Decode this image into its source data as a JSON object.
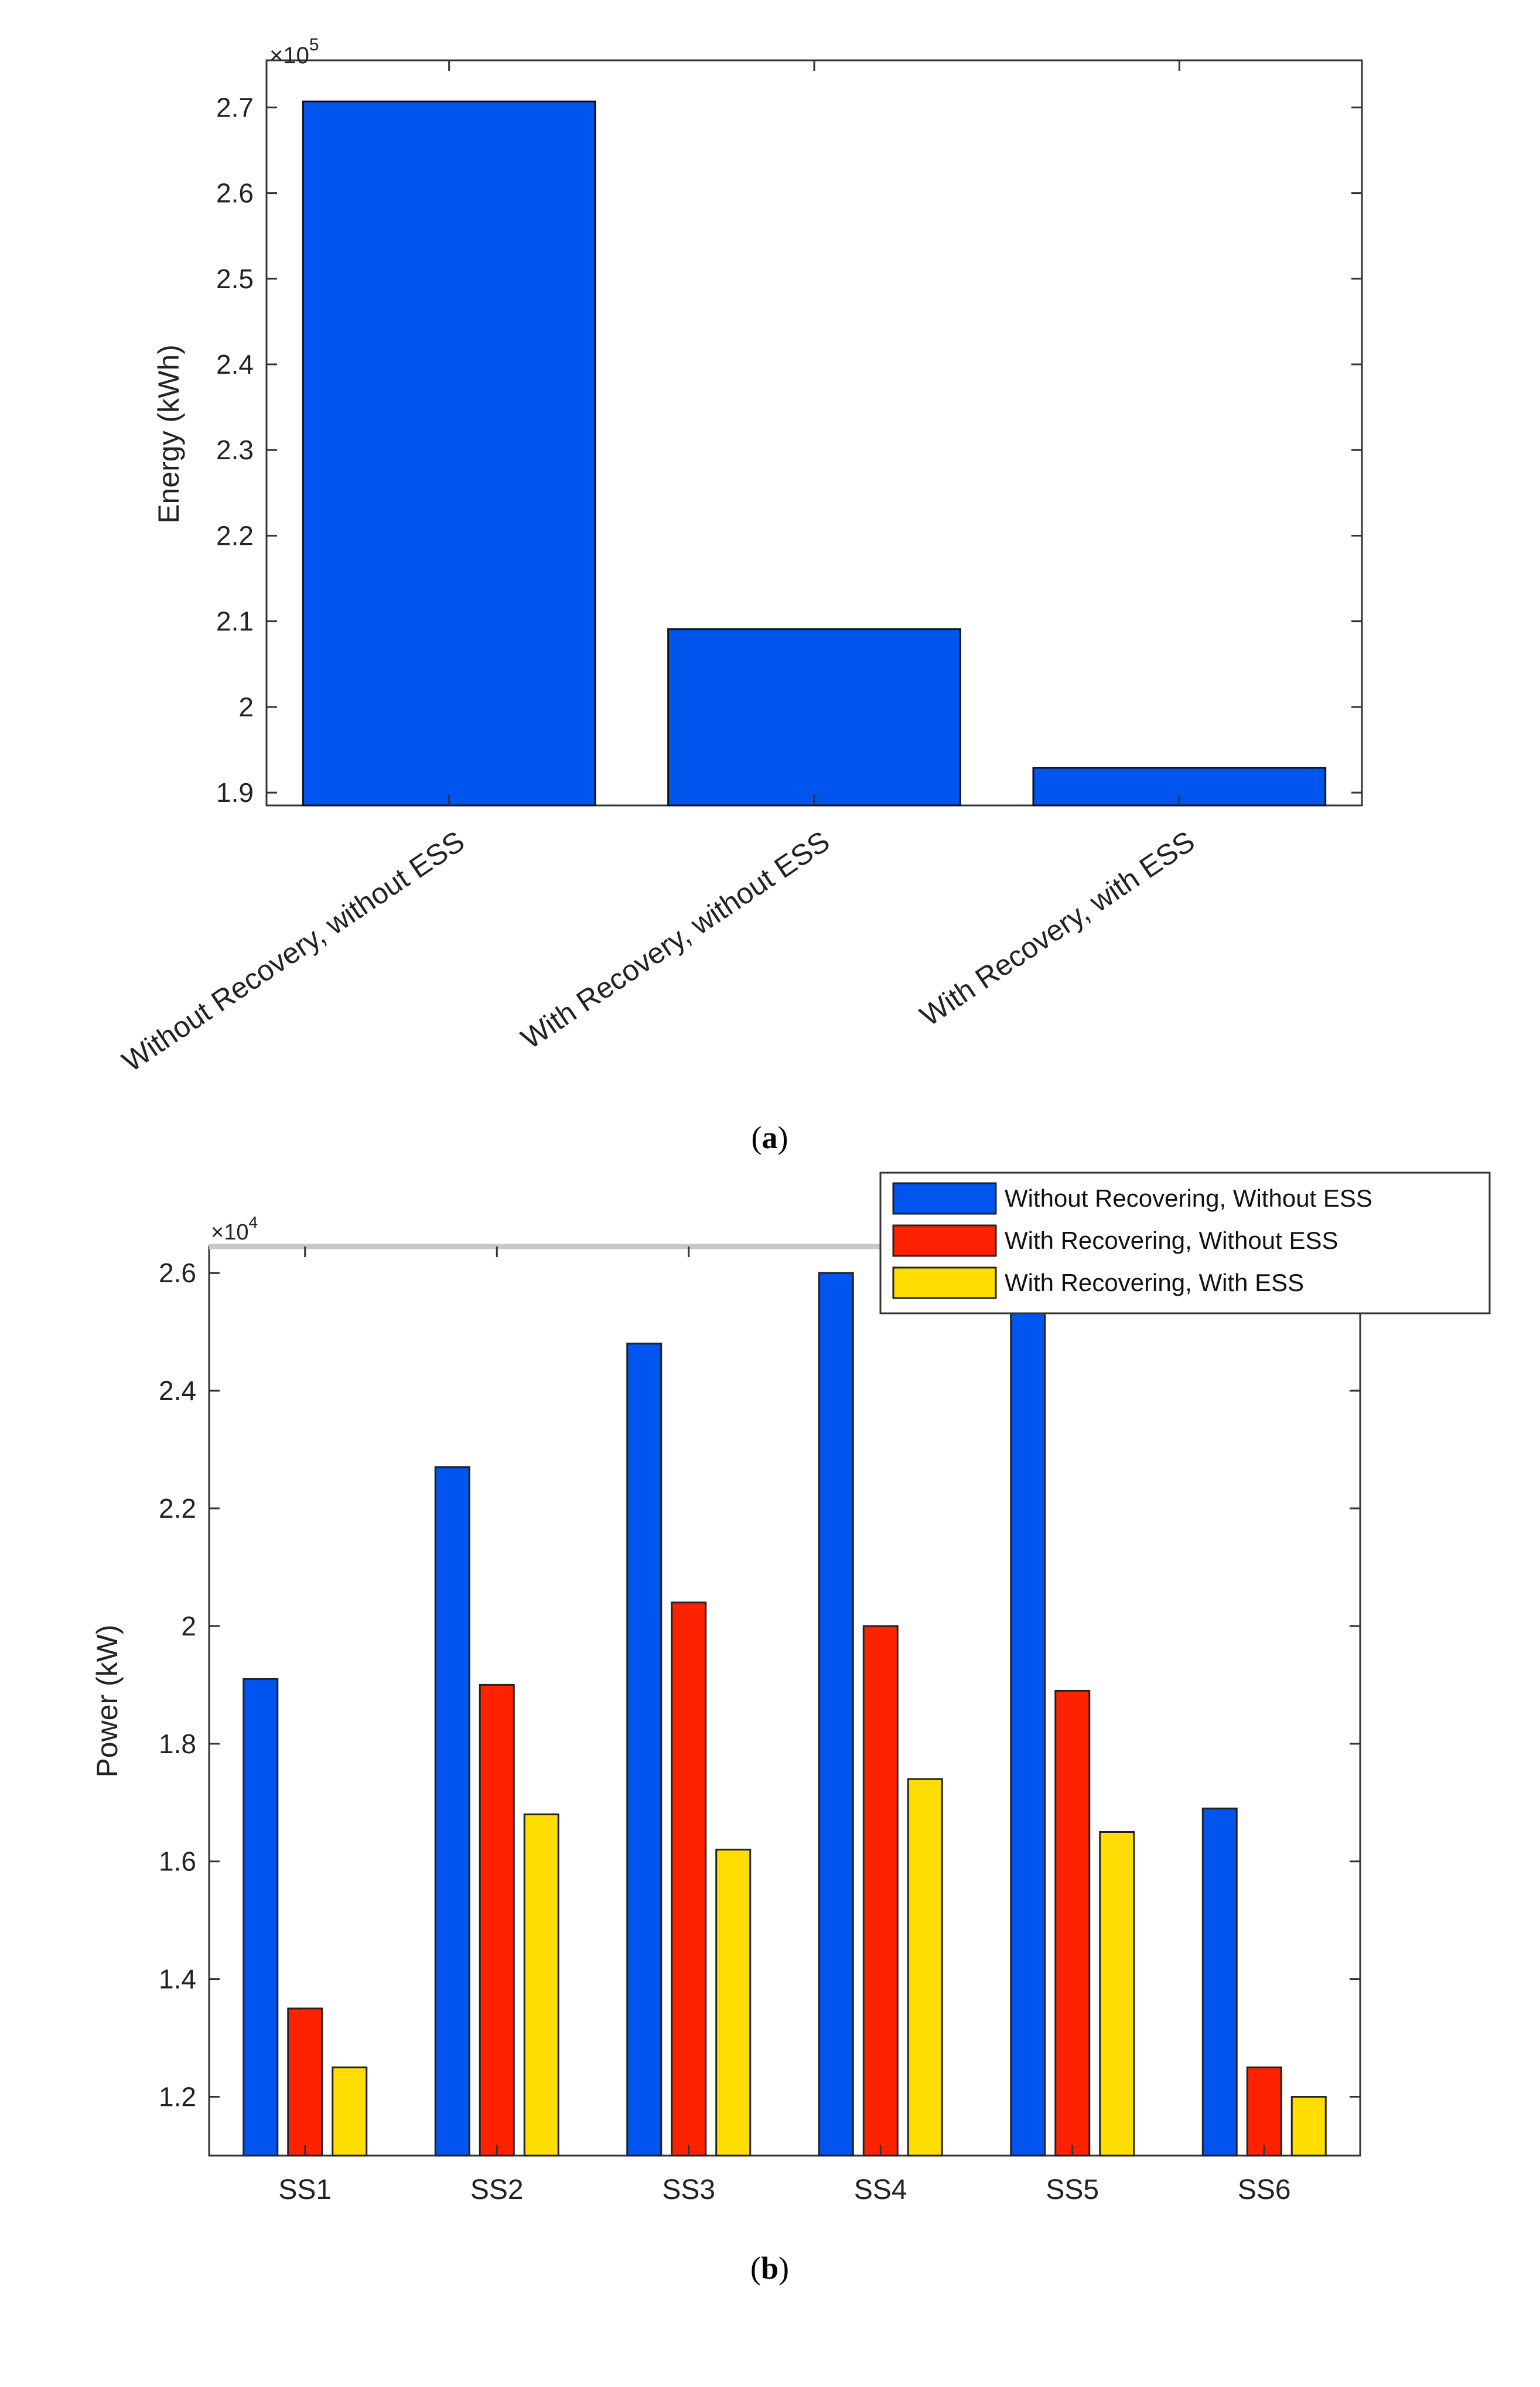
{
  "chart_data": [
    {
      "type": "bar",
      "caption_letter": "a",
      "ylabel": "Energy (kWh)",
      "y_exponent_label": "×10",
      "y_exponent": "5",
      "ylim": [
        1.885,
        2.755
      ],
      "yticks": [
        1.9,
        2.0,
        2.1,
        2.2,
        2.3,
        2.4,
        2.5,
        2.6,
        2.7
      ],
      "ytick_labels": [
        "1.9",
        "2",
        "2.1",
        "2.2",
        "2.3",
        "2.4",
        "2.5",
        "2.6",
        "2.7"
      ],
      "categories": [
        "Without Recovery, without ESS",
        "With Recovery, without ESS",
        "With Recovery, with ESS"
      ],
      "values": [
        2.707,
        2.091,
        1.929
      ],
      "bar_color": "#0055ee",
      "grid": false
    },
    {
      "type": "bar",
      "caption_letter": "b",
      "ylabel": "Power (kW)",
      "y_exponent_label": "×10",
      "y_exponent": "4",
      "ylim": [
        1.1,
        2.645
      ],
      "yticks": [
        1.2,
        1.4,
        1.6,
        1.8,
        2.0,
        2.2,
        2.4,
        2.6
      ],
      "ytick_labels": [
        "1.2",
        "1.4",
        "1.6",
        "1.8",
        "2",
        "2.2",
        "2.4",
        "2.6"
      ],
      "categories": [
        "SS1",
        "SS2",
        "SS3",
        "SS4",
        "SS5",
        "SS6"
      ],
      "legend_position": "top-right",
      "grid": false,
      "series": [
        {
          "name": "Without Recovering, Without ESS",
          "color": "#0055ee",
          "values": [
            1.91,
            2.27,
            2.48,
            2.6,
            2.58,
            1.69
          ]
        },
        {
          "name": "With Recovering, Without ESS",
          "color": "#ff2200",
          "values": [
            1.35,
            1.9,
            2.04,
            2.0,
            1.89,
            1.25
          ]
        },
        {
          "name": "With Recovering, With ESS",
          "color": "#ffdd00",
          "values": [
            1.25,
            1.68,
            1.62,
            1.74,
            1.65,
            1.2
          ]
        }
      ]
    }
  ]
}
